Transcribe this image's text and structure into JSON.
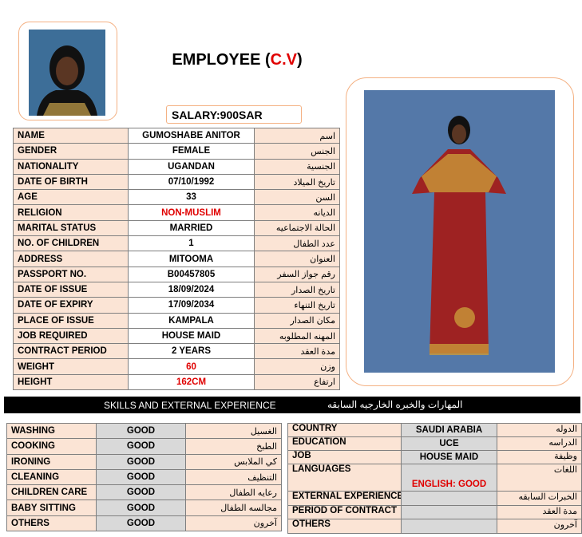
{
  "header": {
    "title_prefix": "EMPLOYEE (",
    "title_highlight": "C.V",
    "title_suffix": ")",
    "salary": "SALARY:900SAR"
  },
  "personal": {
    "rows": [
      {
        "label": "NAME",
        "value": "GUMOSHABE ANITOR",
        "arabic": "اسم"
      },
      {
        "label": "GENDER",
        "value": "FEMALE",
        "arabic": "الجنس"
      },
      {
        "label": "NATIONALITY",
        "value": "UGANDAN",
        "arabic": "الجنسية"
      },
      {
        "label": "DATE OF BIRTH",
        "value": "07/10/1992",
        "arabic": "تاريخ الميلاد"
      },
      {
        "label": "AGE",
        "value": "33",
        "arabic": "السن"
      },
      {
        "label": "RELIGION",
        "value": "NON-MUSLIM",
        "arabic": "الديانه",
        "highlight": true
      },
      {
        "label": "MARITAL STATUS",
        "value": "MARRIED",
        "arabic": "الحالة الاجتماعيه"
      },
      {
        "label": "NO. OF CHILDREN",
        "value": "1",
        "arabic": "عدد الطفال"
      },
      {
        "label": "ADDRESS",
        "value": "MITOOMA",
        "arabic": "العنوان"
      },
      {
        "label": "PASSPORT NO.",
        "value": "B00457805",
        "arabic": "رقم جواز السفر"
      },
      {
        "label": "DATE OF ISSUE",
        "value": "18/09/2024",
        "arabic": "تاريخ الصدار"
      },
      {
        "label": "DATE OF EXPIRY",
        "value": "17/09/2034",
        "arabic": "تاريخ التنهاء"
      },
      {
        "label": "PLACE OF ISSUE",
        "value": "KAMPALA",
        "arabic": "مكان الصدار"
      },
      {
        "label": "JOB REQUIRED",
        "value": "HOUSE MAID",
        "arabic": "المهنه المطلوبه"
      },
      {
        "label": "CONTRACT PERIOD",
        "value": "2 YEARS",
        "arabic": "مدة العقد"
      },
      {
        "label": "WEIGHT",
        "value": "60",
        "arabic": "وزن",
        "highlight": true
      },
      {
        "label": "HEIGHT",
        "value": "162CM",
        "arabic": "ارتفاع",
        "highlight": true
      }
    ]
  },
  "skills_bar": {
    "title": "SKILLS AND EXTERNAL EXPERIENCE",
    "arabic": "المهارات والخبره الخارجيه السابقه"
  },
  "skills": {
    "rows": [
      {
        "label": "WASHING",
        "value": "GOOD",
        "arabic": "الغسيل"
      },
      {
        "label": "COOKING",
        "value": "GOOD",
        "arabic": "الطبخ"
      },
      {
        "label": "IRONING",
        "value": "GOOD",
        "arabic": "كي الملابس"
      },
      {
        "label": "CLEANING",
        "value": "GOOD",
        "arabic": "التنظيف"
      },
      {
        "label": "CHILDREN CARE",
        "value": "GOOD",
        "arabic": "رعايه الطفال"
      },
      {
        "label": "BABY SITTING",
        "value": "GOOD",
        "arabic": "مجالسه الطفال"
      },
      {
        "label": "OTHERS",
        "value": "GOOD",
        "arabic": "آخرون"
      }
    ]
  },
  "experience": {
    "rows": [
      {
        "label": "COUNTRY",
        "value": "SAUDI ARABIA",
        "arabic": "الدوله"
      },
      {
        "label": "EDUCATION",
        "value": "UCE",
        "arabic": "الدراسه"
      },
      {
        "label": "JOB",
        "value": "HOUSE MAID",
        "arabic": "وظيفة"
      },
      {
        "label": "LANGUAGES",
        "value": "ENGLISH: GOOD",
        "arabic": "اللغات",
        "highlight": true
      },
      {
        "label": "EXTERNAL EXPERIENCE",
        "arabic": "الخبرات السابقه"
      },
      {
        "label": "PERIOD OF CONTRACT",
        "arabic": "مدة العقد"
      },
      {
        "label": "OTHERS",
        "arabic": "آخرون"
      }
    ]
  }
}
